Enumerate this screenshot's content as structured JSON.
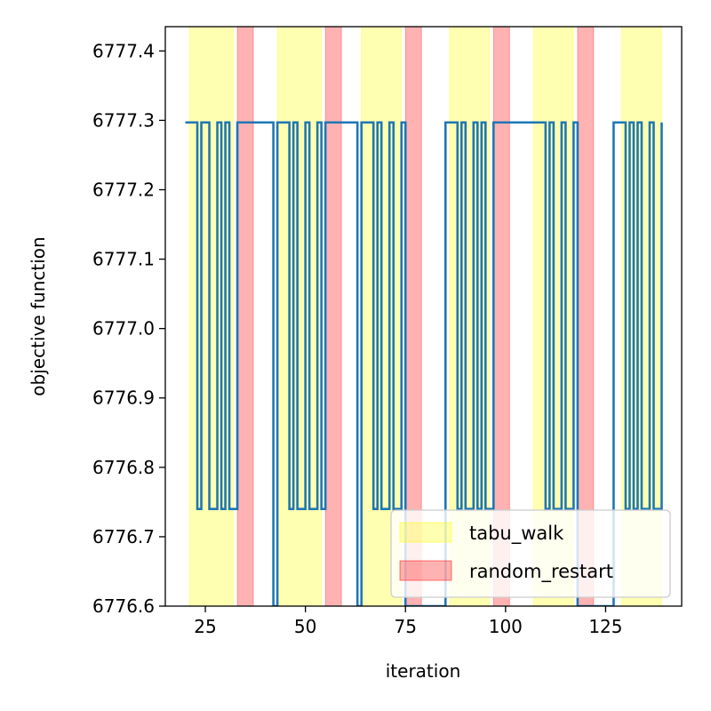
{
  "chart_data": {
    "type": "line",
    "xlabel": "iteration",
    "ylabel": "objective function",
    "xlim": [
      15,
      144
    ],
    "ylim": [
      6776.6,
      6777.435
    ],
    "x_ticks": [
      25,
      50,
      75,
      100,
      125
    ],
    "y_ticks": [
      6776.6,
      6776.7,
      6776.8,
      6776.9,
      6777.0,
      6777.1,
      6777.2,
      6777.3,
      6777.4
    ],
    "y_tick_labels": [
      "6776.6",
      "6776.7",
      "6776.8",
      "6776.9",
      "6777.0",
      "6777.1",
      "6777.2",
      "6777.3",
      "6777.4"
    ],
    "legend_position": "lower-right",
    "legend": [
      {
        "label": "tabu_walk",
        "color": "#ffff00",
        "alpha": 0.3
      },
      {
        "label": "random_restart",
        "color": "#ff0000",
        "alpha": 0.3
      }
    ],
    "spans": {
      "tabu_walk": [
        [
          21,
          32
        ],
        [
          43,
          54
        ],
        [
          64,
          74
        ],
        [
          86,
          96
        ],
        [
          107,
          117
        ],
        [
          129,
          139
        ]
      ],
      "random_restart": [
        [
          33,
          37
        ],
        [
          55,
          59
        ],
        [
          75,
          79
        ],
        [
          97,
          101
        ],
        [
          118,
          122
        ]
      ]
    },
    "series": [
      {
        "color": "#1f77b4",
        "x": [
          20,
          22,
          23,
          24,
          25,
          26,
          27,
          28,
          29,
          30,
          31,
          32,
          33,
          42,
          43,
          44,
          45,
          46,
          47,
          48,
          49,
          50,
          51,
          52,
          53,
          54,
          55,
          63,
          64,
          65,
          66,
          67,
          68,
          69,
          70,
          71,
          72,
          73,
          74,
          75,
          85,
          86,
          87,
          88,
          89,
          90,
          91,
          92,
          93,
          94,
          95,
          96,
          97,
          106,
          107,
          108,
          109,
          110,
          111,
          112,
          113,
          114,
          115,
          116,
          117,
          118,
          127,
          128,
          129,
          130,
          131,
          132,
          133,
          134,
          135,
          136,
          137,
          138,
          139
        ],
        "y": [
          6777.297,
          6777.297,
          6776.74,
          6777.297,
          6777.297,
          6776.74,
          6776.74,
          6777.297,
          6776.74,
          6777.297,
          6776.74,
          6776.74,
          6777.297,
          6776.6,
          6777.297,
          6777.297,
          6777.297,
          6776.74,
          6777.297,
          6776.74,
          6776.74,
          6777.297,
          6776.74,
          6776.74,
          6777.297,
          6776.74,
          6777.297,
          6776.6,
          6777.297,
          6777.297,
          6777.297,
          6776.74,
          6777.297,
          6776.74,
          6776.74,
          6777.297,
          6776.74,
          6776.74,
          6777.297,
          6776.6,
          6777.297,
          6777.297,
          6777.297,
          6776.74,
          6777.297,
          6776.74,
          6776.74,
          6777.297,
          6776.74,
          6777.297,
          6776.74,
          6776.74,
          6777.297,
          6777.297,
          6777.297,
          6777.297,
          6777.297,
          6776.74,
          6777.297,
          6776.74,
          6776.74,
          6777.297,
          6776.74,
          6776.74,
          6777.297,
          6776.6,
          6777.297,
          6777.297,
          6777.297,
          6776.74,
          6777.297,
          6776.74,
          6777.297,
          6776.74,
          6776.74,
          6777.297,
          6776.74,
          6776.74,
          6777.297
        ]
      }
    ]
  }
}
